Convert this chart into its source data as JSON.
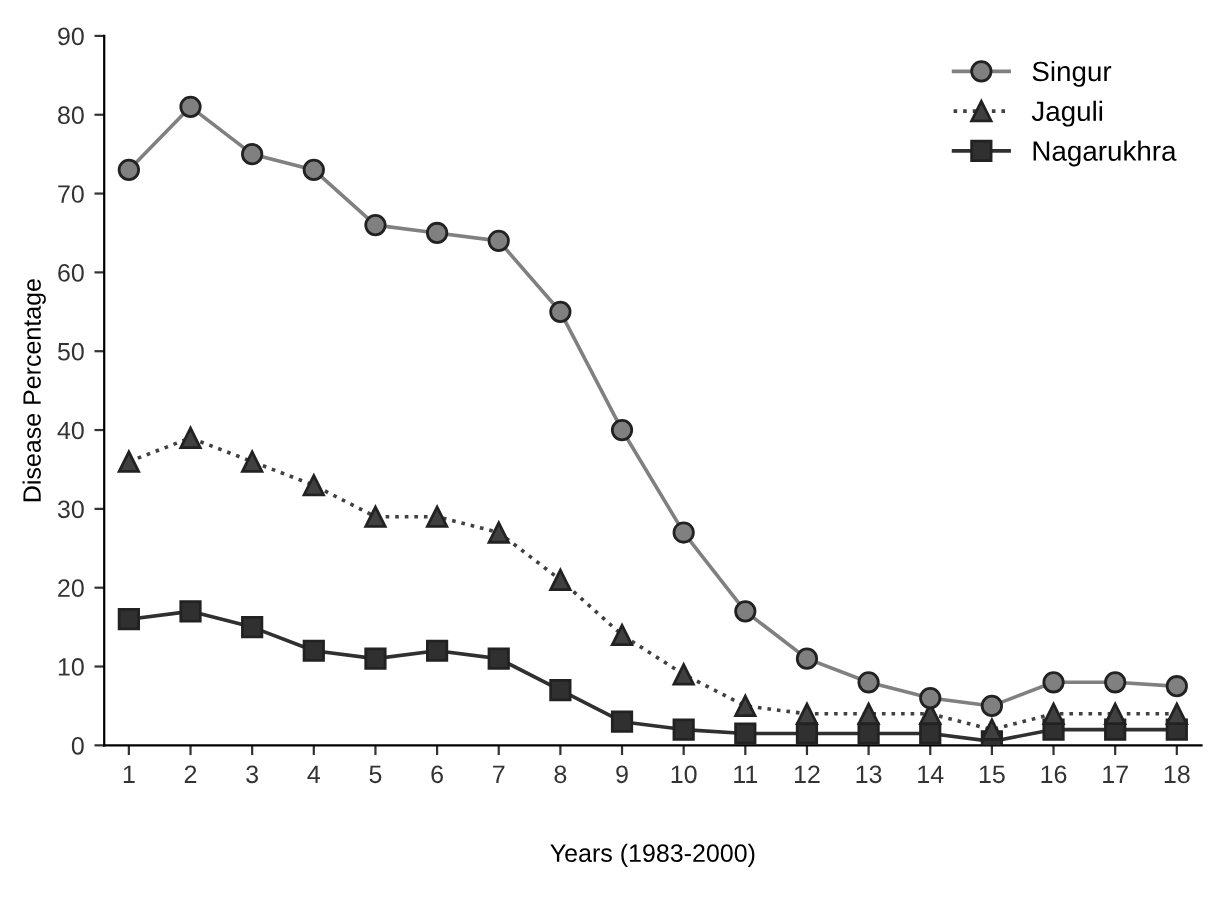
{
  "chart_data": {
    "type": "line",
    "xlabel": "Years (1983-2000)",
    "ylabel": "Disease Percentage",
    "x": [
      1,
      2,
      3,
      4,
      5,
      6,
      7,
      8,
      9,
      10,
      11,
      12,
      13,
      14,
      15,
      16,
      17,
      18
    ],
    "xlim": [
      0.6,
      18.4
    ],
    "xticks": [
      1,
      2,
      3,
      4,
      5,
      6,
      7,
      8,
      9,
      10,
      11,
      12,
      13,
      14,
      15,
      16,
      17,
      18
    ],
    "ylim": [
      0,
      90
    ],
    "yticks": [
      0,
      10,
      20,
      30,
      40,
      50,
      60,
      70,
      80,
      90
    ],
    "grid": false,
    "legend": "top right",
    "series": [
      {
        "name": "Singur",
        "color": "#808080",
        "marker": "circle",
        "line_style": "solid",
        "values": [
          73,
          81,
          75,
          73,
          66,
          65,
          64,
          55,
          40,
          27,
          17,
          11,
          8,
          6,
          5,
          8,
          8,
          7.5
        ]
      },
      {
        "name": "Jaguli",
        "color": "#404040",
        "marker": "triangle",
        "line_style": "dotted",
        "values": [
          36,
          39,
          36,
          33,
          29,
          29,
          27,
          21,
          14,
          9,
          5,
          4,
          4,
          4,
          2,
          4,
          4,
          4
        ]
      },
      {
        "name": "Nagarukhra",
        "color": "#303030",
        "marker": "square",
        "line_style": "solid",
        "values": [
          16,
          17,
          15,
          12,
          11,
          12,
          11,
          7,
          3,
          2,
          1.5,
          1.5,
          1.5,
          1.5,
          0.5,
          2,
          2,
          2
        ]
      }
    ]
  }
}
